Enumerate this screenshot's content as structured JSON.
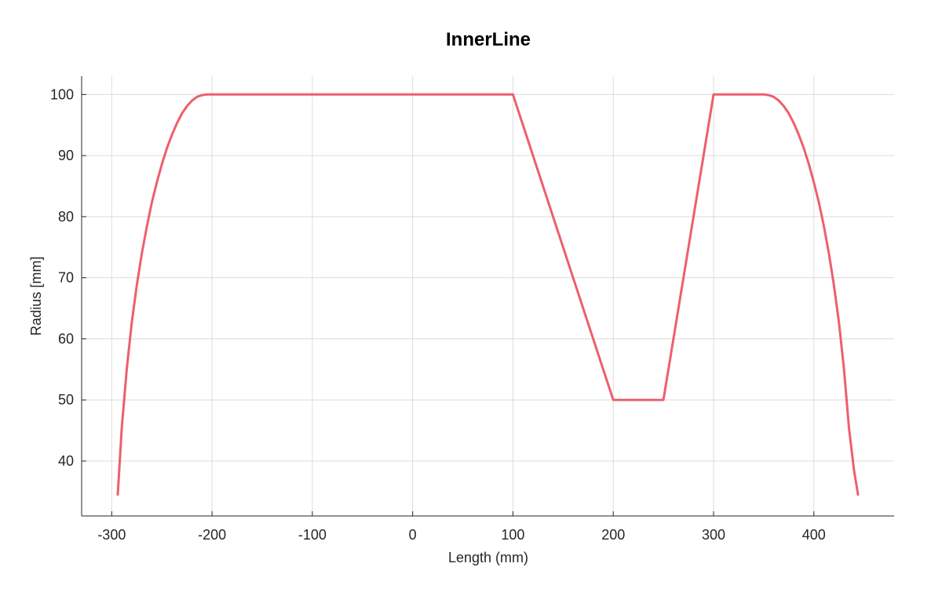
{
  "chart_data": {
    "type": "line",
    "title": "InnerLine",
    "xlabel": "Length (mm)",
    "ylabel": "Radius [mm]",
    "xlim": [
      -330,
      480
    ],
    "ylim": [
      31,
      103
    ],
    "xticks": [
      -300,
      -200,
      -100,
      0,
      100,
      200,
      300,
      400
    ],
    "xtick_labels": [
      "-300",
      "-200",
      "-100",
      "0",
      "100",
      "200",
      "300",
      "400"
    ],
    "yticks": [
      40,
      50,
      60,
      70,
      80,
      90,
      100
    ],
    "ytick_labels": [
      "40",
      "50",
      "60",
      "70",
      "80",
      "90",
      "100"
    ],
    "grid": true,
    "colors": {
      "line": "#ed5f6d"
    },
    "series": [
      {
        "x": [
          -294,
          -290,
          -285,
          -280,
          -275,
          -270,
          -265,
          -260,
          -255,
          -250,
          -245,
          -240,
          -235,
          -230,
          -225,
          -220,
          -215,
          -210,
          -205,
          -200,
          100,
          200,
          250,
          300,
          350,
          355,
          360,
          365,
          370,
          375,
          380,
          385,
          390,
          395,
          400,
          405,
          410,
          415,
          420,
          425,
          430,
          435,
          440,
          444
        ],
        "y": [
          34.5,
          45.4,
          55.1,
          62.7,
          68.8,
          74.0,
          78.4,
          82.3,
          85.6,
          88.6,
          91.2,
          93.4,
          95.3,
          96.9,
          98.1,
          99.0,
          99.6,
          99.9,
          100,
          100,
          100,
          50,
          50,
          100,
          100,
          99.9,
          99.6,
          99.0,
          98.1,
          96.9,
          95.3,
          93.4,
          91.2,
          88.6,
          85.6,
          82.3,
          78.4,
          74.0,
          68.8,
          62.7,
          55.1,
          45.4,
          38.5,
          34.5
        ]
      }
    ]
  }
}
